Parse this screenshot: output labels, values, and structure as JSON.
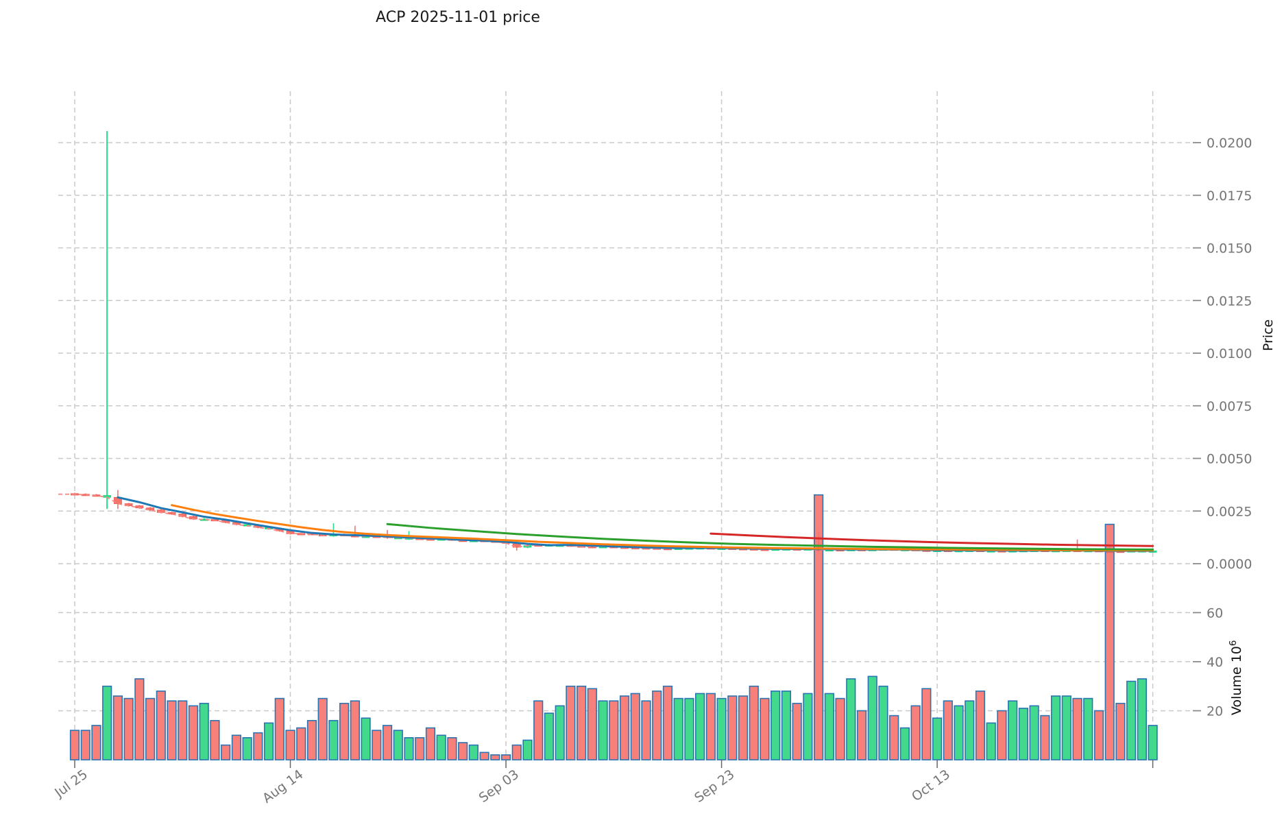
{
  "title": "ACP  2025-11-01  price",
  "colors": {
    "candle_up": "#2fdd8c",
    "candle_down": "#f4736b",
    "candle_down_edge": "#ef5c50",
    "candle_up_edge": "#1ed47d",
    "bar_up": "#43d98c",
    "bar_down": "#f8807a",
    "bar_border": "#2a74b4",
    "close_line": "#f58a84",
    "ma_blue": "#1f77b4",
    "ma_orange": "#ff7f0e",
    "ma_green": "#2ca02c",
    "ma_red": "#d62728",
    "grid": "#c9c9c9",
    "tick_text": "#757575",
    "axis_tick": "#8a8a8a",
    "title_text": "#1a1a1a"
  },
  "chart_data": {
    "type": "candlestick+volume",
    "title": "ACP  2025-11-01  price",
    "grid": true,
    "price_axis": {
      "label": "Price",
      "side": "right",
      "tick_labels": [
        "0.0200",
        "0.0175",
        "0.0150",
        "0.0125",
        "0.0100",
        "0.0075",
        "0.0050",
        "0.0025",
        "0.0000"
      ],
      "tick_values": [
        0.02,
        0.0175,
        0.015,
        0.0125,
        0.01,
        0.0075,
        0.005,
        0.0025,
        0.0
      ]
    },
    "volume_axis": {
      "label_text": "Volume  10",
      "label_exponent": "6",
      "side": "right",
      "tick_labels": [
        "60",
        "40",
        "20"
      ],
      "tick_values": [
        60,
        40,
        20
      ],
      "unit": "1e6"
    },
    "x_axis": {
      "tick_labels": [
        "Jul 25",
        "Aug 14",
        "Sep 03",
        "Sep 23",
        "Oct 13"
      ],
      "tick_day_indices": [
        0,
        20,
        40,
        60,
        80
      ],
      "extra_gridline_day_index": 100,
      "rotation_deg": 36
    },
    "price_unit": 0.0001,
    "days": 101,
    "first_open": 33.3,
    "close": [
      33.0,
      32.7,
      32.4,
      31.5,
      28.5,
      27.5,
      26.5,
      25.5,
      24.3,
      23.6,
      22.4,
      21.2,
      21.0,
      20.6,
      19.6,
      18.6,
      18.0,
      17.2,
      16.6,
      15.6,
      14.2,
      14.4,
      13.9,
      13.5,
      13.9,
      13.4,
      13.1,
      12.9,
      13.1,
      12.5,
      12.3,
      12.1,
      11.8,
      11.6,
      11.8,
      11.2,
      11.0,
      11.1,
      10.8,
      10.4,
      9.8,
      7.8,
      8.6,
      9.0,
      8.8,
      8.9,
      8.5,
      8.2,
      8.0,
      8.2,
      7.9,
      7.7,
      7.6,
      7.5,
      7.3,
      7.2,
      7.4,
      7.5,
      7.6,
      7.3,
      7.4,
      7.2,
      7.1,
      6.9,
      6.8,
      7.0,
      7.1,
      6.9,
      7.1,
      6.3,
      6.7,
      6.5,
      6.8,
      6.5,
      6.8,
      7.0,
      6.7,
      6.8,
      6.5,
      6.3,
      6.4,
      6.2,
      6.3,
      6.4,
      6.1,
      6.2,
      6.0,
      6.2,
      6.3,
      6.4,
      6.1,
      6.3,
      6.4,
      6.1,
      6.3,
      6.0,
      5.8,
      6.0,
      6.2,
      6.1,
      6.0
    ],
    "candle_colors": "rrrgrrrrrrrrgrrrgrgrrrrrgrrgrrggrrgrrgrrrrgrggrrrgrrrrrrgggrgrrrrggrgrgrgrggrgrrgrggrgrgggrggrgrrrggg",
    "default_wick": 0.4,
    "special_wicks": {
      "3": [
        205.5,
        26.0
      ],
      "4": [
        35.0,
        26.0
      ],
      "24": [
        19.2,
        12.8
      ],
      "26": [
        18.0,
        12.5
      ],
      "29": [
        16.0,
        11.8
      ],
      "31": [
        15.5,
        11.3
      ],
      "41": [
        10.2,
        6.2
      ],
      "69": [
        15.3,
        5.8
      ],
      "93": [
        11.5,
        5.9
      ],
      "96": [
        9.0,
        5.4
      ]
    },
    "volume": [
      12,
      12,
      14,
      30,
      26,
      25,
      33,
      25,
      28,
      24,
      24,
      22,
      23,
      16,
      6,
      10,
      9,
      11,
      15,
      25,
      12,
      13,
      16,
      25,
      16,
      23,
      24,
      17,
      12,
      14,
      12,
      9,
      9,
      13,
      10,
      9,
      7,
      6,
      3,
      2,
      2,
      6,
      8,
      24,
      19,
      22,
      30,
      30,
      29,
      24,
      24,
      26,
      27,
      24,
      28,
      30,
      25,
      25,
      27,
      27,
      25,
      26,
      26,
      30,
      25,
      28,
      28,
      23,
      27,
      108,
      27,
      25,
      33,
      20,
      34,
      30,
      18,
      13,
      22,
      29,
      17,
      24,
      22,
      24,
      28,
      15,
      20,
      24,
      21,
      22,
      18,
      26,
      26,
      25,
      25,
      20,
      96,
      23,
      32,
      33,
      14
    ],
    "close_line": {
      "style": "dashed",
      "follows": "close"
    },
    "moving_averages": [
      {
        "name": "ma-short-blue",
        "color_key": "ma_blue",
        "points": [
          [
            4,
            31.5
          ],
          [
            6,
            29.2
          ],
          [
            8,
            26.4
          ],
          [
            10,
            24.4
          ],
          [
            12,
            22.3
          ],
          [
            14,
            20.9
          ],
          [
            16,
            19.2
          ],
          [
            18,
            17.5
          ],
          [
            20,
            15.9
          ],
          [
            22,
            14.6
          ],
          [
            24,
            13.9
          ],
          [
            26,
            13.5
          ],
          [
            28,
            13.2
          ],
          [
            30,
            12.7
          ],
          [
            32,
            12.2
          ],
          [
            34,
            11.8
          ],
          [
            36,
            11.3
          ],
          [
            38,
            10.9
          ],
          [
            40,
            10.4
          ],
          [
            42,
            9.4
          ],
          [
            44,
            8.8
          ],
          [
            46,
            8.9
          ],
          [
            48,
            8.6
          ],
          [
            50,
            8.2
          ],
          [
            52,
            7.9
          ],
          [
            54,
            7.6
          ],
          [
            56,
            7.4
          ],
          [
            58,
            7.5
          ],
          [
            60,
            7.4
          ],
          [
            64,
            7.1
          ],
          [
            68,
            7.0
          ],
          [
            72,
            6.7
          ],
          [
            76,
            6.8
          ],
          [
            80,
            6.4
          ],
          [
            84,
            6.3
          ],
          [
            88,
            6.2
          ],
          [
            92,
            6.3
          ],
          [
            96,
            6.1
          ],
          [
            100,
            6.1
          ]
        ]
      },
      {
        "name": "ma-mid-orange",
        "color_key": "ma_orange",
        "points": [
          [
            9,
            27.8
          ],
          [
            11,
            25.6
          ],
          [
            13,
            23.6
          ],
          [
            15,
            21.9
          ],
          [
            17,
            20.3
          ],
          [
            19,
            18.8
          ],
          [
            21,
            17.3
          ],
          [
            23,
            16.0
          ],
          [
            25,
            15.0
          ],
          [
            27,
            14.2
          ],
          [
            29,
            13.6
          ],
          [
            31,
            13.1
          ],
          [
            33,
            12.7
          ],
          [
            35,
            12.3
          ],
          [
            37,
            11.9
          ],
          [
            39,
            11.4
          ],
          [
            41,
            10.9
          ],
          [
            43,
            10.4
          ],
          [
            45,
            10.0
          ],
          [
            47,
            9.6
          ],
          [
            49,
            9.2
          ],
          [
            51,
            8.9
          ],
          [
            53,
            8.6
          ],
          [
            55,
            8.3
          ],
          [
            57,
            8.1
          ],
          [
            59,
            7.9
          ],
          [
            61,
            7.7
          ],
          [
            65,
            7.4
          ],
          [
            69,
            7.2
          ],
          [
            73,
            7.0
          ],
          [
            77,
            6.9
          ],
          [
            81,
            6.7
          ],
          [
            85,
            6.6
          ],
          [
            89,
            6.5
          ],
          [
            93,
            6.4
          ],
          [
            97,
            6.3
          ],
          [
            100,
            6.3
          ]
        ]
      },
      {
        "name": "ma-long-green",
        "color_key": "ma_green",
        "points": [
          [
            29,
            18.8
          ],
          [
            33,
            17.0
          ],
          [
            37,
            15.5
          ],
          [
            41,
            14.1
          ],
          [
            45,
            12.9
          ],
          [
            49,
            11.8
          ],
          [
            53,
            10.9
          ],
          [
            57,
            10.1
          ],
          [
            61,
            9.4
          ],
          [
            65,
            8.9
          ],
          [
            69,
            8.5
          ],
          [
            73,
            8.1
          ],
          [
            77,
            7.8
          ],
          [
            81,
            7.5
          ],
          [
            85,
            7.3
          ],
          [
            89,
            7.1
          ],
          [
            93,
            6.9
          ],
          [
            97,
            6.8
          ],
          [
            100,
            6.7
          ]
        ]
      },
      {
        "name": "ma-xlong-red",
        "color_key": "ma_red",
        "points": [
          [
            59,
            14.3
          ],
          [
            63,
            13.3
          ],
          [
            67,
            12.4
          ],
          [
            71,
            11.6
          ],
          [
            75,
            10.9
          ],
          [
            79,
            10.3
          ],
          [
            83,
            9.8
          ],
          [
            87,
            9.4
          ],
          [
            91,
            9.0
          ],
          [
            95,
            8.7
          ],
          [
            100,
            8.4
          ]
        ]
      }
    ]
  }
}
